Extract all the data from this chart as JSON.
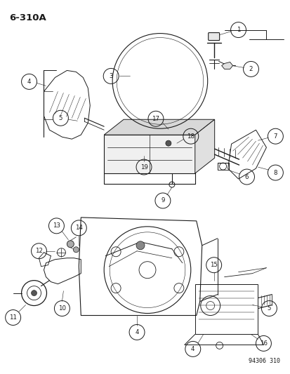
{
  "page_label": "6-310A",
  "catalog_number": "94306 310",
  "bg": "#ffffff",
  "lc": "#1a1a1a",
  "fig_w": 4.14,
  "fig_h": 5.33,
  "dpi": 100,
  "circle_r": 0.013,
  "label_fs": 6.0,
  "title_fs": 9.5,
  "lw": 0.7,
  "lw_th": 0.4
}
